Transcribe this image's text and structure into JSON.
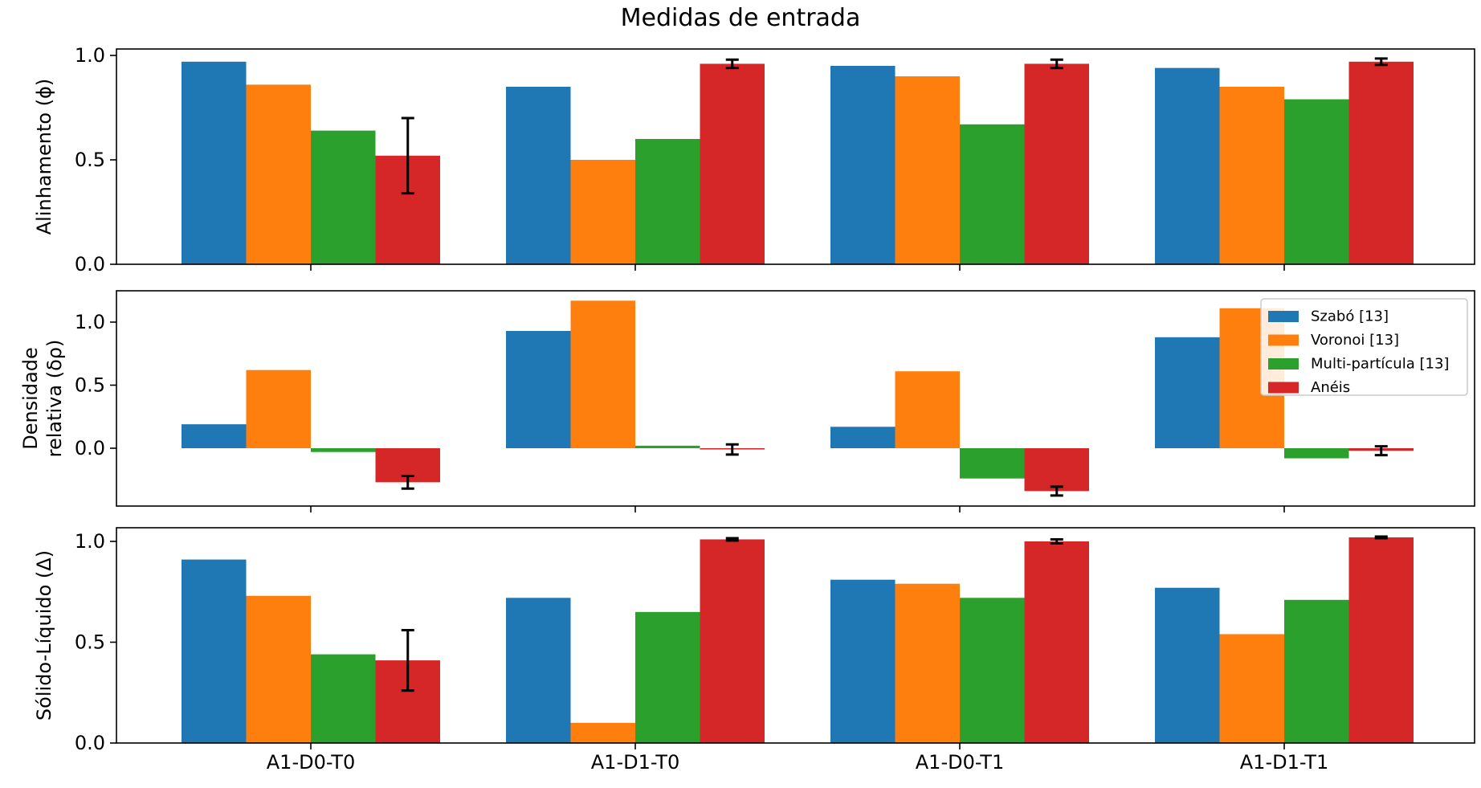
{
  "chart_data": {
    "type": "bar",
    "title": "Medidas de entrada",
    "categories": [
      "A1-D0-T0",
      "A1-D1-T0",
      "A1-D0-T1",
      "A1-D1-T1"
    ],
    "colors": [
      "#1f77b4",
      "#ff7f0e",
      "#2ca02c",
      "#d62728"
    ],
    "legend": {
      "placement": "top-right of middle panel",
      "entries": [
        "Szabó [13]",
        "Voronoi [13]",
        "Multi-partícula [13]",
        "Anéis"
      ]
    },
    "grid": false,
    "panels": [
      {
        "ylabel": [
          "Alinhamento (ϕ)"
        ],
        "ylim": [
          0,
          1.0
        ],
        "yticks": [
          0.0,
          0.5,
          1.0
        ],
        "ytick_labels": [
          "0.0",
          "0.5",
          "1.0"
        ],
        "series": [
          {
            "name": "Szabó [13]",
            "values": [
              0.97,
              0.85,
              0.95,
              0.94
            ]
          },
          {
            "name": "Voronoi [13]",
            "values": [
              0.86,
              0.5,
              0.9,
              0.85
            ]
          },
          {
            "name": "Multi-partícula [13]",
            "values": [
              0.64,
              0.6,
              0.67,
              0.79
            ]
          },
          {
            "name": "Anéis",
            "values": [
              0.52,
              0.96,
              0.96,
              0.97
            ],
            "errors": [
              0.18,
              0.02,
              0.02,
              0.015
            ]
          }
        ]
      },
      {
        "ylabel": [
          "Densidade",
          "relativa (δρ)"
        ],
        "ylim": [
          -0.45,
          1.2
        ],
        "yticks": [
          0.0,
          0.5,
          1.0
        ],
        "ytick_labels": [
          "0.0",
          "0.5",
          "1.0"
        ],
        "series": [
          {
            "name": "Szabó [13]",
            "values": [
              0.19,
              0.93,
              0.17,
              0.88
            ]
          },
          {
            "name": "Voronoi [13]",
            "values": [
              0.62,
              1.17,
              0.61,
              1.11
            ]
          },
          {
            "name": "Multi-partícula [13]",
            "values": [
              -0.03,
              0.02,
              -0.24,
              -0.08
            ]
          },
          {
            "name": "Anéis",
            "values": [
              -0.27,
              -0.01,
              -0.34,
              -0.02
            ],
            "errors": [
              0.05,
              0.04,
              0.035,
              0.035
            ]
          }
        ]
      },
      {
        "ylabel": [
          "Sólido-Líquido (Δ)"
        ],
        "ylim": [
          0,
          1.0
        ],
        "yticks": [
          0.0,
          0.5,
          1.0
        ],
        "ytick_labels": [
          "0.0",
          "0.5",
          "1.0"
        ],
        "series": [
          {
            "name": "Szabó [13]",
            "values": [
              0.91,
              0.72,
              0.81,
              0.77
            ]
          },
          {
            "name": "Voronoi [13]",
            "values": [
              0.73,
              0.1,
              0.79,
              0.54
            ]
          },
          {
            "name": "Multi-partícula [13]",
            "values": [
              0.44,
              0.65,
              0.72,
              0.71
            ]
          },
          {
            "name": "Anéis",
            "values": [
              0.41,
              1.01,
              1.0,
              1.02
            ],
            "errors": [
              0.15,
              0.006,
              0.01,
              0.004
            ]
          }
        ]
      }
    ]
  }
}
